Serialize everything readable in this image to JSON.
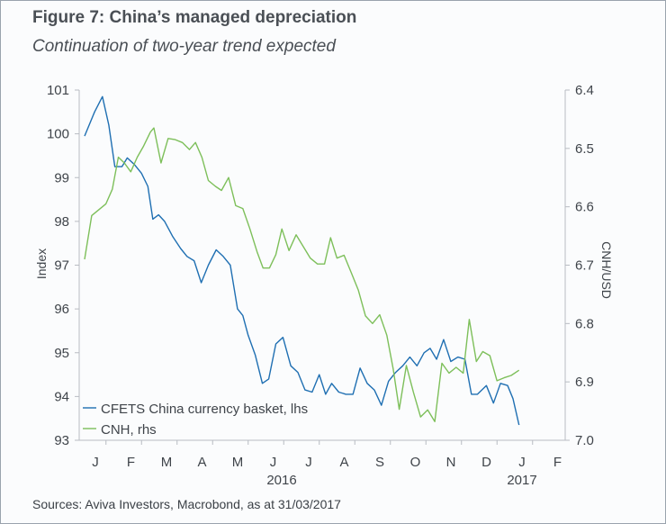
{
  "figure": {
    "title": "Figure 7: China’s managed depreciation",
    "subtitle": "Continuation of two-year trend expected",
    "source": "Sources: Aviva Investors, Macrobond, as at 31/03/2017"
  },
  "colors": {
    "cfets": "#1f6fb2",
    "cnh": "#7dbf5a",
    "axis": "#b8bcc2",
    "text": "#3f444a"
  },
  "chart_data": {
    "type": "line",
    "title": "Figure 7: China’s managed depreciation",
    "subtitle": "Continuation of two-year trend expected",
    "ylabel_left": "Index",
    "ylabel_right": "CNH/USD",
    "ylim_left": [
      93,
      101
    ],
    "ylim_right": [
      6.4,
      7.0
    ],
    "right_axis_inverted": true,
    "yticks_left": [
      "93",
      "94",
      "95",
      "96",
      "97",
      "98",
      "99",
      "100",
      "101"
    ],
    "yticks_right": [
      "6.4",
      "6.5",
      "6.6",
      "6.7",
      "6.8",
      "6.9",
      "7.0"
    ],
    "x_month_labels": [
      "J",
      "F",
      "M",
      "A",
      "M",
      "J",
      "J",
      "A",
      "S",
      "O",
      "N",
      "D",
      "J",
      "F"
    ],
    "x_year_labels": [
      "2016",
      "2017"
    ],
    "grid": false,
    "legend_position": "bottom-left",
    "series": [
      {
        "name": "CFETS China currency basket, lhs",
        "axis": "left",
        "points": [
          [
            0.0,
            99.95
          ],
          [
            0.28,
            100.5
          ],
          [
            0.5,
            100.85
          ],
          [
            0.68,
            100.2
          ],
          [
            0.85,
            99.25
          ],
          [
            1.05,
            99.25
          ],
          [
            1.2,
            99.45
          ],
          [
            1.4,
            99.3
          ],
          [
            1.6,
            99.1
          ],
          [
            1.78,
            98.8
          ],
          [
            1.92,
            98.05
          ],
          [
            2.08,
            98.15
          ],
          [
            2.25,
            98.0
          ],
          [
            2.48,
            97.65
          ],
          [
            2.7,
            97.38
          ],
          [
            2.88,
            97.2
          ],
          [
            3.08,
            97.1
          ],
          [
            3.28,
            96.6
          ],
          [
            3.48,
            97.0
          ],
          [
            3.7,
            97.35
          ],
          [
            3.9,
            97.2
          ],
          [
            4.1,
            97.0
          ],
          [
            4.3,
            96.0
          ],
          [
            4.45,
            95.85
          ],
          [
            4.6,
            95.4
          ],
          [
            4.8,
            94.95
          ],
          [
            5.0,
            94.3
          ],
          [
            5.18,
            94.4
          ],
          [
            5.38,
            95.2
          ],
          [
            5.58,
            95.35
          ],
          [
            5.8,
            94.7
          ],
          [
            6.0,
            94.55
          ],
          [
            6.2,
            94.15
          ],
          [
            6.4,
            94.1
          ],
          [
            6.6,
            94.5
          ],
          [
            6.78,
            94.05
          ],
          [
            6.95,
            94.3
          ],
          [
            7.15,
            94.1
          ],
          [
            7.35,
            94.05
          ],
          [
            7.55,
            94.05
          ],
          [
            7.75,
            94.65
          ],
          [
            7.95,
            94.3
          ],
          [
            8.15,
            94.15
          ],
          [
            8.35,
            93.8
          ],
          [
            8.55,
            94.35
          ],
          [
            8.75,
            94.55
          ],
          [
            8.95,
            94.7
          ],
          [
            9.15,
            94.9
          ],
          [
            9.35,
            94.7
          ],
          [
            9.55,
            95.0
          ],
          [
            9.72,
            95.1
          ],
          [
            9.9,
            94.85
          ],
          [
            10.1,
            95.3
          ],
          [
            10.3,
            94.8
          ],
          [
            10.5,
            94.9
          ],
          [
            10.7,
            94.85
          ],
          [
            10.88,
            94.05
          ],
          [
            11.05,
            94.05
          ],
          [
            11.3,
            94.25
          ],
          [
            11.5,
            93.85
          ],
          [
            11.7,
            94.3
          ],
          [
            11.9,
            94.25
          ],
          [
            12.05,
            93.95
          ],
          [
            12.22,
            93.35
          ]
        ]
      },
      {
        "name": "CNH, rhs",
        "axis": "right",
        "points": [
          [
            0.0,
            6.69
          ],
          [
            0.2,
            6.615
          ],
          [
            0.4,
            6.605
          ],
          [
            0.6,
            6.595
          ],
          [
            0.78,
            6.57
          ],
          [
            0.95,
            6.515
          ],
          [
            1.12,
            6.525
          ],
          [
            1.3,
            6.54
          ],
          [
            1.48,
            6.515
          ],
          [
            1.65,
            6.497
          ],
          [
            1.85,
            6.472
          ],
          [
            1.95,
            6.465
          ],
          [
            2.15,
            6.525
          ],
          [
            2.35,
            6.483
          ],
          [
            2.55,
            6.485
          ],
          [
            2.75,
            6.49
          ],
          [
            2.95,
            6.502
          ],
          [
            3.12,
            6.49
          ],
          [
            3.3,
            6.515
          ],
          [
            3.48,
            6.555
          ],
          [
            3.68,
            6.565
          ],
          [
            3.85,
            6.572
          ],
          [
            4.05,
            6.55
          ],
          [
            4.25,
            6.598
          ],
          [
            4.45,
            6.603
          ],
          [
            4.65,
            6.638
          ],
          [
            4.85,
            6.677
          ],
          [
            5.02,
            6.705
          ],
          [
            5.2,
            6.705
          ],
          [
            5.38,
            6.682
          ],
          [
            5.55,
            6.638
          ],
          [
            5.75,
            6.675
          ],
          [
            5.95,
            6.648
          ],
          [
            6.15,
            6.668
          ],
          [
            6.35,
            6.688
          ],
          [
            6.55,
            6.698
          ],
          [
            6.75,
            6.698
          ],
          [
            6.92,
            6.653
          ],
          [
            7.1,
            6.688
          ],
          [
            7.3,
            6.683
          ],
          [
            7.5,
            6.713
          ],
          [
            7.7,
            6.743
          ],
          [
            7.9,
            6.787
          ],
          [
            8.1,
            6.8
          ],
          [
            8.3,
            6.785
          ],
          [
            8.5,
            6.82
          ],
          [
            8.68,
            6.878
          ],
          [
            8.85,
            6.947
          ],
          [
            9.05,
            6.872
          ],
          [
            9.25,
            6.918
          ],
          [
            9.45,
            6.96
          ],
          [
            9.65,
            6.948
          ],
          [
            9.85,
            6.968
          ],
          [
            10.05,
            6.868
          ],
          [
            10.25,
            6.885
          ],
          [
            10.45,
            6.875
          ],
          [
            10.65,
            6.885
          ],
          [
            10.82,
            6.793
          ],
          [
            11.02,
            6.865
          ],
          [
            11.2,
            6.848
          ],
          [
            11.4,
            6.855
          ],
          [
            11.6,
            6.898
          ],
          [
            11.8,
            6.893
          ],
          [
            12.0,
            6.889
          ],
          [
            12.22,
            6.88
          ]
        ]
      }
    ]
  }
}
